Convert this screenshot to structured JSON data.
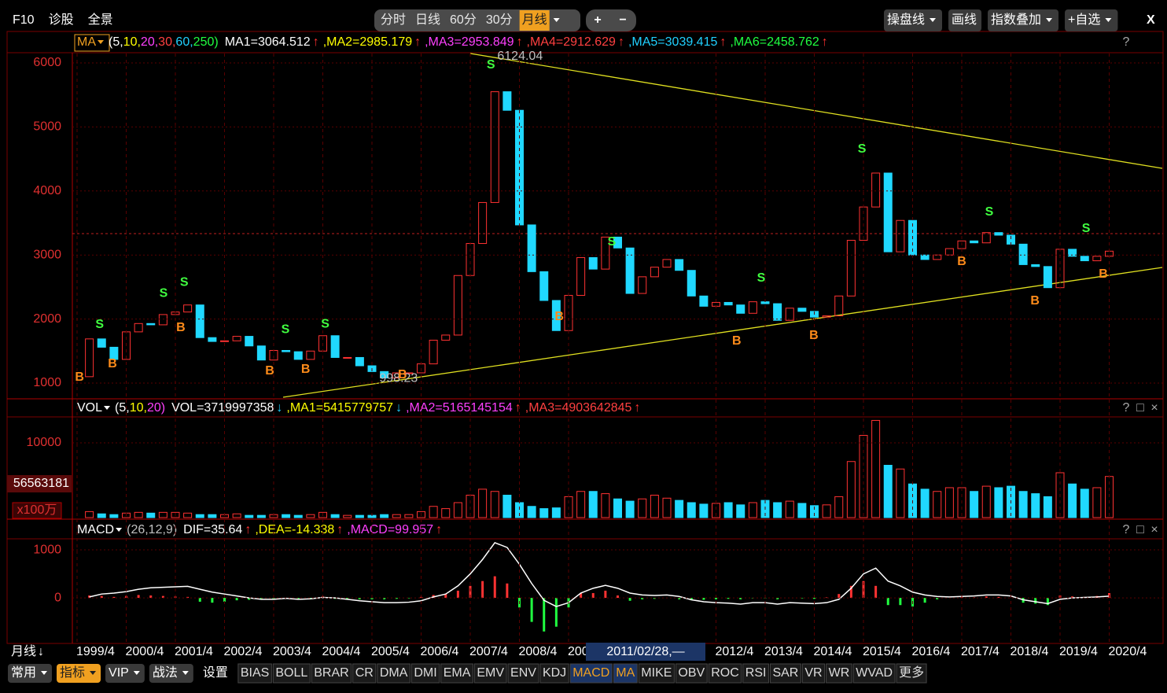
{
  "toolbar": {
    "left": [
      "F10",
      "诊股",
      "全景"
    ],
    "periods": [
      "分时",
      "日线",
      "60分",
      "30分",
      "月线"
    ],
    "active_period": "月线",
    "zoom": [
      "+",
      "−"
    ],
    "right": [
      "操盘线",
      "画线",
      "指数叠加",
      "+自选"
    ],
    "close": "X"
  },
  "headers": [
    {
      "name": "MA",
      "params": [
        {
          "text": "(5,",
          "color": "#ffffff"
        },
        {
          "text": "10,",
          "color": "#ffff00"
        },
        {
          "text": "20,",
          "color": "#ff40ff"
        },
        {
          "text": "30,",
          "color": "#ff4040"
        },
        {
          "text": "60,",
          "color": "#20d0ff"
        },
        {
          "text": "250)",
          "color": "#20ff40"
        }
      ],
      "items": [
        {
          "text": "MA1=3064.512",
          "color": "#ffffff",
          "arrow": "↑",
          "arrow_color": "#ff3030"
        },
        {
          "text": ",MA2=2985.179",
          "color": "#ffff00",
          "arrow": "↑",
          "arrow_color": "#ff3030"
        },
        {
          "text": ",MA3=2953.849",
          "color": "#ff40ff",
          "arrow": "↑",
          "arrow_color": "#ff3030"
        },
        {
          "text": ",MA4=2912.629",
          "color": "#ff4040",
          "arrow": "↑",
          "arrow_color": "#ff3030"
        },
        {
          "text": ",MA5=3039.415",
          "color": "#20d0ff",
          "arrow": "↑",
          "arrow_color": "#ff3030"
        },
        {
          "text": ",MA6=2458.762",
          "color": "#20ff40",
          "arrow": "↑",
          "arrow_color": "#ff3030"
        }
      ],
      "controls": [
        "?"
      ]
    },
    {
      "name": "VOL",
      "params": [
        {
          "text": "(5,",
          "color": "#ffffff"
        },
        {
          "text": "10,",
          "color": "#ffff00"
        },
        {
          "text": "20)",
          "color": "#ff40ff"
        }
      ],
      "items": [
        {
          "text": "VOL=3719997358",
          "color": "#ffffff",
          "arrow": "↓",
          "arrow_color": "#20d0ff"
        },
        {
          "text": ",MA1=5415779757",
          "color": "#ffff00",
          "arrow": "↓",
          "arrow_color": "#20d0ff"
        },
        {
          "text": ",MA2=5165145154",
          "color": "#ff40ff",
          "arrow": "↑",
          "arrow_color": "#ff3030"
        },
        {
          "text": ",MA3=4903642845",
          "color": "#ff4040",
          "arrow": "↑",
          "arrow_color": "#ff3030"
        }
      ],
      "controls": [
        "?",
        "□",
        "×"
      ]
    },
    {
      "name": "MACD",
      "params": [
        {
          "text": "(26,12,9)",
          "color": "#c0c0c0"
        }
      ],
      "items": [
        {
          "text": "DIF=35.64",
          "color": "#ffffff",
          "arrow": "↑",
          "arrow_color": "#ff3030"
        },
        {
          "text": ",DEA=-14.338",
          "color": "#ffff00",
          "arrow": "↑",
          "arrow_color": "#ff3030"
        },
        {
          "text": ",MACD=99.957",
          "color": "#ff40ff",
          "arrow": "↑",
          "arrow_color": "#ff3030"
        }
      ],
      "controls": [
        "?",
        "□",
        "×"
      ]
    }
  ],
  "chart_data": [
    {
      "type": "candlestick",
      "up_color": "#ff3232",
      "down_color": "#20d8ff",
      "ylim": [
        779,
        6147
      ],
      "yticks": [
        1000,
        2000,
        3000,
        4000,
        5000,
        6000
      ],
      "grid": true,
      "x": [
        1999.5,
        1999.75,
        2000,
        2000.25,
        2000.5,
        2000.75,
        2001,
        2001.25,
        2001.5,
        2001.75,
        2002,
        2002.25,
        2002.5,
        2002.75,
        2003,
        2003.25,
        2003.5,
        2003.75,
        2004,
        2004.25,
        2004.5,
        2004.75,
        2005,
        2005.25,
        2005.5,
        2005.75,
        2006,
        2006.25,
        2006.5,
        2006.75,
        2007,
        2007.25,
        2007.5,
        2007.75,
        2008,
        2008.25,
        2008.5,
        2008.75,
        2009,
        2009.25,
        2009.5,
        2009.75,
        2010,
        2010.25,
        2010.5,
        2010.75,
        2011,
        2011.25,
        2011.5,
        2011.75,
        2012,
        2012.25,
        2012.5,
        2012.75,
        2013,
        2013.25,
        2013.5,
        2013.75,
        2014,
        2014.25,
        2014.5,
        2014.75,
        2015,
        2015.25,
        2015.5,
        2015.75,
        2016,
        2016.25,
        2016.5,
        2016.75,
        2017,
        2017.25,
        2017.5,
        2017.75,
        2018,
        2018.25,
        2018.5,
        2018.75,
        2019,
        2019.25,
        2019.5,
        2019.75,
        2020,
        2020.25
      ],
      "open": [
        1100,
        1690,
        1560,
        1370,
        1800,
        1930,
        1910,
        2070,
        2110,
        2220,
        1710,
        1650,
        1660,
        1730,
        1580,
        1360,
        1510,
        1490,
        1370,
        1500,
        1740,
        1400,
        1400,
        1270,
        1180,
        1080,
        1160,
        1160,
        1300,
        1670,
        1750,
        2680,
        3180,
        3820,
        5550,
        5260,
        3470,
        2740,
        2290,
        1820,
        2370,
        2960,
        2780,
        3280,
        3110,
        2400,
        2660,
        2810,
        2930,
        2760,
        2360,
        2200,
        2260,
        2220,
        2090,
        2270,
        2240,
        1980,
        2170,
        2120,
        2030,
        2050,
        2360,
        3230,
        3750,
        4280,
        3050,
        3540,
        3000,
        2930,
        3000,
        3100,
        3220,
        3190,
        3350,
        3310,
        3170,
        2850,
        2820,
        2490,
        3090,
        2980,
        2910,
        2980
      ],
      "close": [
        1690,
        1560,
        1370,
        1800,
        1930,
        1910,
        2070,
        2110,
        2220,
        1710,
        1650,
        1660,
        1730,
        1580,
        1360,
        1510,
        1490,
        1370,
        1500,
        1740,
        1400,
        1400,
        1270,
        1180,
        1080,
        1160,
        1160,
        1300,
        1670,
        1750,
        2680,
        3180,
        3820,
        5550,
        5260,
        3470,
        2740,
        2290,
        1820,
        2370,
        2960,
        2780,
        3280,
        3110,
        2400,
        2660,
        2810,
        2930,
        2760,
        2360,
        2200,
        2260,
        2220,
        2090,
        2270,
        2240,
        1980,
        2170,
        2120,
        2030,
        2050,
        2360,
        3230,
        3750,
        4280,
        3050,
        3540,
        3000,
        2930,
        3000,
        3100,
        3220,
        3190,
        3350,
        3310,
        3170,
        2850,
        2820,
        2490,
        3090,
        2980,
        2910,
        2980,
        3060
      ],
      "annotations": [
        {
          "text": "6124.04",
          "x": 2007.8,
          "price": 6124
        },
        {
          "text": "998.23",
          "x": 2005.4,
          "price": 998
        }
      ],
      "signal_colors": {
        "S": "#40ff40",
        "B": "#ff8c1a"
      },
      "signals": [
        {
          "label": "B",
          "x": 1999.3,
          "price": 1086
        },
        {
          "label": "S",
          "x": 1999.71,
          "price": 1909
        },
        {
          "label": "B",
          "x": 1999.97,
          "price": 1295
        },
        {
          "label": "S",
          "x": 2001.01,
          "price": 2400
        },
        {
          "label": "S",
          "x": 2001.43,
          "price": 2572
        },
        {
          "label": "B",
          "x": 2001.36,
          "price": 1860
        },
        {
          "label": "B",
          "x": 2003.17,
          "price": 1184
        },
        {
          "label": "S",
          "x": 2003.49,
          "price": 1835
        },
        {
          "label": "B",
          "x": 2003.9,
          "price": 1209
        },
        {
          "label": "S",
          "x": 2004.3,
          "price": 1921
        },
        {
          "label": "B",
          "x": 2005.87,
          "price": 1123
        },
        {
          "label": "S",
          "x": 2007.67,
          "price": 5963
        },
        {
          "label": "B",
          "x": 2009.06,
          "price": 2032
        },
        {
          "label": "S",
          "x": 2010.13,
          "price": 3199
        },
        {
          "label": "B",
          "x": 2012.67,
          "price": 1651
        },
        {
          "label": "S",
          "x": 2013.17,
          "price": 2634
        },
        {
          "label": "B",
          "x": 2014.24,
          "price": 1737
        },
        {
          "label": "S",
          "x": 2015.22,
          "price": 4649
        },
        {
          "label": "B",
          "x": 2017.25,
          "price": 2892
        },
        {
          "label": "S",
          "x": 2017.81,
          "price": 3666
        },
        {
          "label": "B",
          "x": 2018.74,
          "price": 2278
        },
        {
          "label": "S",
          "x": 2019.78,
          "price": 3408
        },
        {
          "label": "B",
          "x": 2020.13,
          "price": 2695
        }
      ]
    },
    {
      "type": "bar",
      "ylim": [
        0,
        13470
      ],
      "yticks": [
        10000
      ],
      "readout": "56563181",
      "unit": "x100万",
      "values": [
        800,
        500,
        400,
        600,
        700,
        600,
        700,
        700,
        600,
        400,
        400,
        400,
        500,
        300,
        300,
        400,
        400,
        300,
        400,
        700,
        400,
        300,
        300,
        300,
        400,
        400,
        400,
        800,
        1500,
        1200,
        2000,
        3000,
        3800,
        3500,
        3000,
        2000,
        1500,
        1200,
        1300,
        2800,
        3500,
        3500,
        3200,
        2500,
        2200,
        2500,
        3000,
        2600,
        2300,
        2000,
        1800,
        1900,
        2000,
        1700,
        2000,
        2300,
        2000,
        2200,
        1900,
        1600,
        1700,
        2800,
        7500,
        11000,
        13000,
        7000,
        6500,
        4500,
        3800,
        3500,
        4000,
        4000,
        3500,
        4200,
        4000,
        4200,
        3500,
        3200,
        2800,
        6000,
        4500,
        3800,
        4000,
        5500
      ]
    },
    {
      "type": "macd",
      "ylim": [
        -900,
        1230
      ],
      "yticks": [
        0,
        1000
      ],
      "pos_color": "#ff3232",
      "neg_color": "#20ff40",
      "dif_color": "#ffffff",
      "macd": [
        50,
        40,
        20,
        40,
        60,
        50,
        40,
        30,
        20,
        -80,
        -100,
        -80,
        -50,
        -40,
        -40,
        -20,
        -10,
        -20,
        -10,
        30,
        -20,
        -30,
        -30,
        -30,
        -30,
        -20,
        -10,
        20,
        60,
        80,
        150,
        250,
        350,
        450,
        300,
        -200,
        -500,
        -700,
        -600,
        -200,
        100,
        100,
        150,
        50,
        -60,
        -30,
        -20,
        0,
        -30,
        -50,
        -40,
        -30,
        -20,
        -30,
        -10,
        -10,
        -30,
        0,
        -10,
        -20,
        10,
        80,
        250,
        350,
        250,
        -150,
        -150,
        -180,
        -100,
        -30,
        0,
        20,
        10,
        30,
        20,
        0,
        -100,
        -120,
        -150,
        50,
        30,
        20,
        40,
        100
      ],
      "dif": [
        20,
        80,
        100,
        130,
        180,
        210,
        220,
        230,
        240,
        180,
        120,
        80,
        40,
        0,
        -30,
        -30,
        -10,
        -30,
        -20,
        10,
        0,
        -30,
        -60,
        -80,
        -100,
        -100,
        -90,
        -60,
        20,
        80,
        250,
        500,
        800,
        1150,
        1050,
        700,
        300,
        -50,
        -180,
        -100,
        100,
        200,
        260,
        200,
        100,
        60,
        50,
        60,
        30,
        -40,
        -80,
        -100,
        -110,
        -130,
        -100,
        -100,
        -130,
        -100,
        -110,
        -120,
        -100,
        -30,
        200,
        500,
        620,
        350,
        250,
        120,
        60,
        30,
        20,
        30,
        40,
        60,
        60,
        40,
        -40,
        -80,
        -120,
        -30,
        0,
        10,
        20,
        36
      ]
    }
  ],
  "x_axis": {
    "period": "月线",
    "arrow": "↓",
    "ticks": [
      {
        "value": 1999.25,
        "label": "1999/4"
      },
      {
        "value": 2000.25,
        "label": "2000/4"
      },
      {
        "value": 2001.25,
        "label": "2001/4"
      },
      {
        "value": 2002.25,
        "label": "2002/4"
      },
      {
        "value": 2003.25,
        "label": "2003/4"
      },
      {
        "value": 2004.25,
        "label": "2004/4"
      },
      {
        "value": 2005.25,
        "label": "2005/4"
      },
      {
        "value": 2006.25,
        "label": "2006/4"
      },
      {
        "value": 2007.25,
        "label": "2007/4"
      },
      {
        "value": 2008.25,
        "label": "2008/4"
      },
      {
        "value": 2009.25,
        "label": "200"
      },
      {
        "value": 2012.25,
        "label": "2012/4"
      },
      {
        "value": 2013.25,
        "label": "2013/4"
      },
      {
        "value": 2014.25,
        "label": "2014/4"
      },
      {
        "value": 2015.25,
        "label": "2015/4"
      },
      {
        "value": 2016.25,
        "label": "2016/4"
      },
      {
        "value": 2017.25,
        "label": "2017/4"
      },
      {
        "value": 2018.25,
        "label": "2018/4"
      },
      {
        "value": 2019.25,
        "label": "2019/4"
      },
      {
        "value": 2020.25,
        "label": "2020/4"
      }
    ],
    "cursor": "2011/02/28,—"
  },
  "bottom_tabs": {
    "menus": [
      "常用",
      "指标",
      "VIP",
      "战法"
    ],
    "active_menu": "指标",
    "settings": "设置",
    "indicators": [
      "BIAS",
      "BOLL",
      "BRAR",
      "CR",
      "DMA",
      "DMI",
      "EMA",
      "EMV",
      "ENV",
      "KDJ",
      "MACD",
      "MA",
      "MIKE",
      "OBV",
      "ROC",
      "RSI",
      "SAR",
      "VR",
      "WR",
      "WVAD",
      "更多"
    ],
    "active": [
      "MACD",
      "MA"
    ]
  }
}
